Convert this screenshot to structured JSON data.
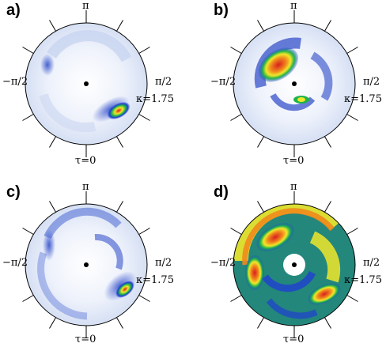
{
  "panels": [
    {
      "letter": "a)",
      "top_label": "π",
      "left_label": "−π/2",
      "right_label": "π/2",
      "kappa_label": "κ=1.75",
      "bottom_label": "τ=0"
    },
    {
      "letter": "b)",
      "top_label": "π",
      "left_label": "−π/2",
      "right_label": "π/2",
      "kappa_label": "κ=1.75",
      "bottom_label": "τ=0"
    },
    {
      "letter": "c)",
      "top_label": "π",
      "left_label": "−π/2",
      "right_label": "π/2",
      "kappa_label": "κ=1.75",
      "bottom_label": "τ=0"
    },
    {
      "letter": "d)",
      "top_label": "π",
      "left_label": "−π/2",
      "right_label": "π/2",
      "kappa_label": "κ=1.75",
      "bottom_label": "τ=0"
    }
  ],
  "colors": {
    "low": "#dfe7f7",
    "mid": "#1f3fd0",
    "green": "#1fb34a",
    "yellow": "#f1e72a",
    "orange": "#f08a1c",
    "red": "#d81f1f"
  }
}
